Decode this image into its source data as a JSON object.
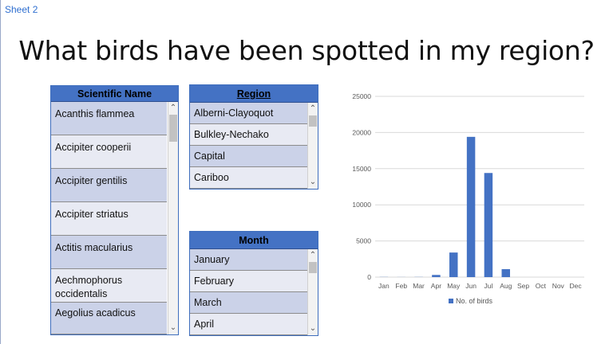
{
  "sheet_tab": "Sheet 2",
  "title": "What birds have been spotted in my region?",
  "scientific_name": {
    "header": "Scientific Name",
    "items": [
      "Acanthis flammea",
      "Accipiter cooperii",
      "Accipiter gentilis",
      "Accipiter striatus",
      "Actitis macularius",
      "Aechmophorus occidentalis",
      "Aegolius acadicus"
    ]
  },
  "region": {
    "header": "Region",
    "items": [
      "Alberni-Clayoquot",
      "Bulkley-Nechako",
      "Capital",
      "Cariboo"
    ]
  },
  "month": {
    "header": "Month",
    "items": [
      "January",
      "February",
      "March",
      "April"
    ]
  },
  "colors": {
    "accent": "#4472c4",
    "row_odd": "#cbd2e8",
    "row_even": "#e8eaf3"
  },
  "icons": {
    "scroll_up": "chevron-up-icon",
    "scroll_down": "chevron-down-icon"
  },
  "chart_data": {
    "type": "bar",
    "categories": [
      "Jan",
      "Feb",
      "Mar",
      "Apr",
      "May",
      "Jun",
      "Jul",
      "Aug",
      "Sep",
      "Oct",
      "Nov",
      "Dec"
    ],
    "series": [
      {
        "name": "No. of birds",
        "values": [
          20,
          10,
          20,
          300,
          3400,
          19400,
          14400,
          1100,
          0,
          0,
          0,
          0
        ]
      }
    ],
    "y_ticks": [
      "0",
      "5000",
      "10000",
      "15000",
      "20000",
      "25000"
    ],
    "ylim": [
      0,
      25000
    ],
    "grid": true,
    "legend": "bottom",
    "title": "",
    "xlabel": "",
    "ylabel": ""
  }
}
